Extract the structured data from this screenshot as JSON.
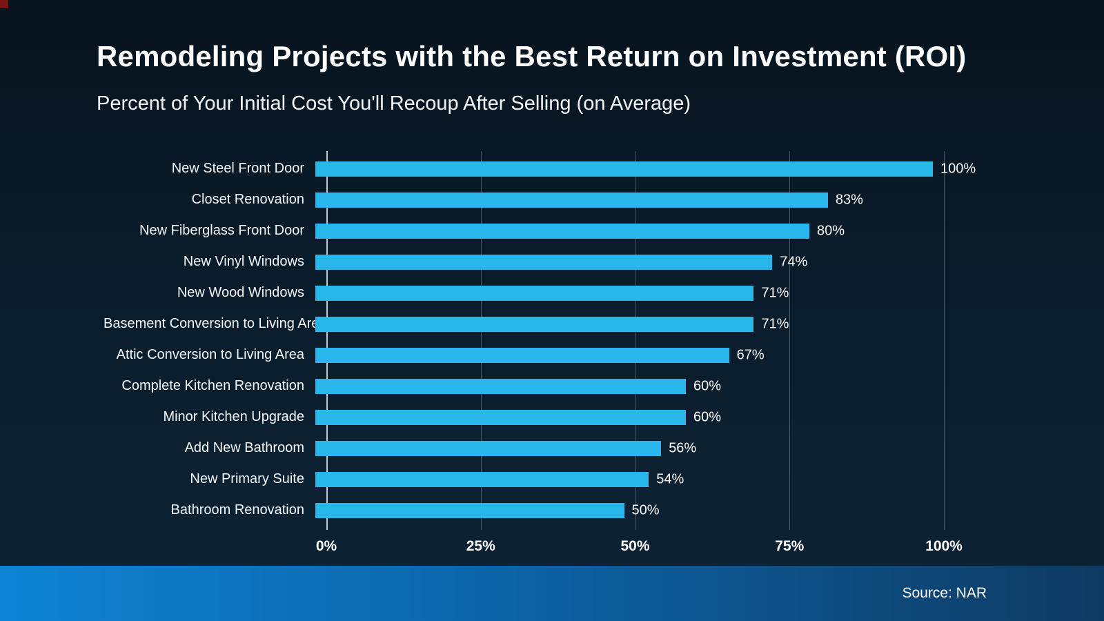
{
  "header": {
    "title": "Remodeling Projects with the Best Return on Investment (ROI)",
    "subtitle": "Percent of Your Initial Cost You'll Recoup After Selling (on Average)"
  },
  "footer": {
    "source": "Source: NAR"
  },
  "colors": {
    "bar": "#29B6EA",
    "background_top": "#08141f",
    "background_bottom": "#0d2436",
    "footer_left": "#0e83d4",
    "footer_right": "#0e3a62"
  },
  "chart_data": {
    "type": "bar",
    "orientation": "horizontal",
    "title": "Remodeling Projects with the Best Return on Investment (ROI)",
    "subtitle": "Percent of Your Initial Cost You'll Recoup After Selling (on Average)",
    "categories": [
      "New Steel Front Door",
      "Closet Renovation",
      "New Fiberglass Front Door",
      "New Vinyl Windows",
      "New Wood Windows",
      "Basement Conversion to Living Area",
      "Attic Conversion to Living Area",
      "Complete Kitchen Renovation",
      "Minor Kitchen Upgrade",
      "Add New Bathroom",
      "New Primary Suite",
      "Bathroom Renovation"
    ],
    "values": [
      100,
      83,
      80,
      74,
      71,
      71,
      67,
      60,
      60,
      56,
      54,
      50
    ],
    "value_labels": [
      "100%",
      "83%",
      "80%",
      "74%",
      "71%",
      "71%",
      "67%",
      "60%",
      "60%",
      "56%",
      "54%",
      "50%"
    ],
    "x_ticks": [
      "0%",
      "25%",
      "50%",
      "75%",
      "100%"
    ],
    "x_tick_values": [
      0,
      25,
      50,
      75,
      100
    ],
    "xlim": [
      0,
      100
    ],
    "grid": true,
    "legend": false,
    "bar_color": "#29B6EA",
    "source": "Source: NAR"
  }
}
